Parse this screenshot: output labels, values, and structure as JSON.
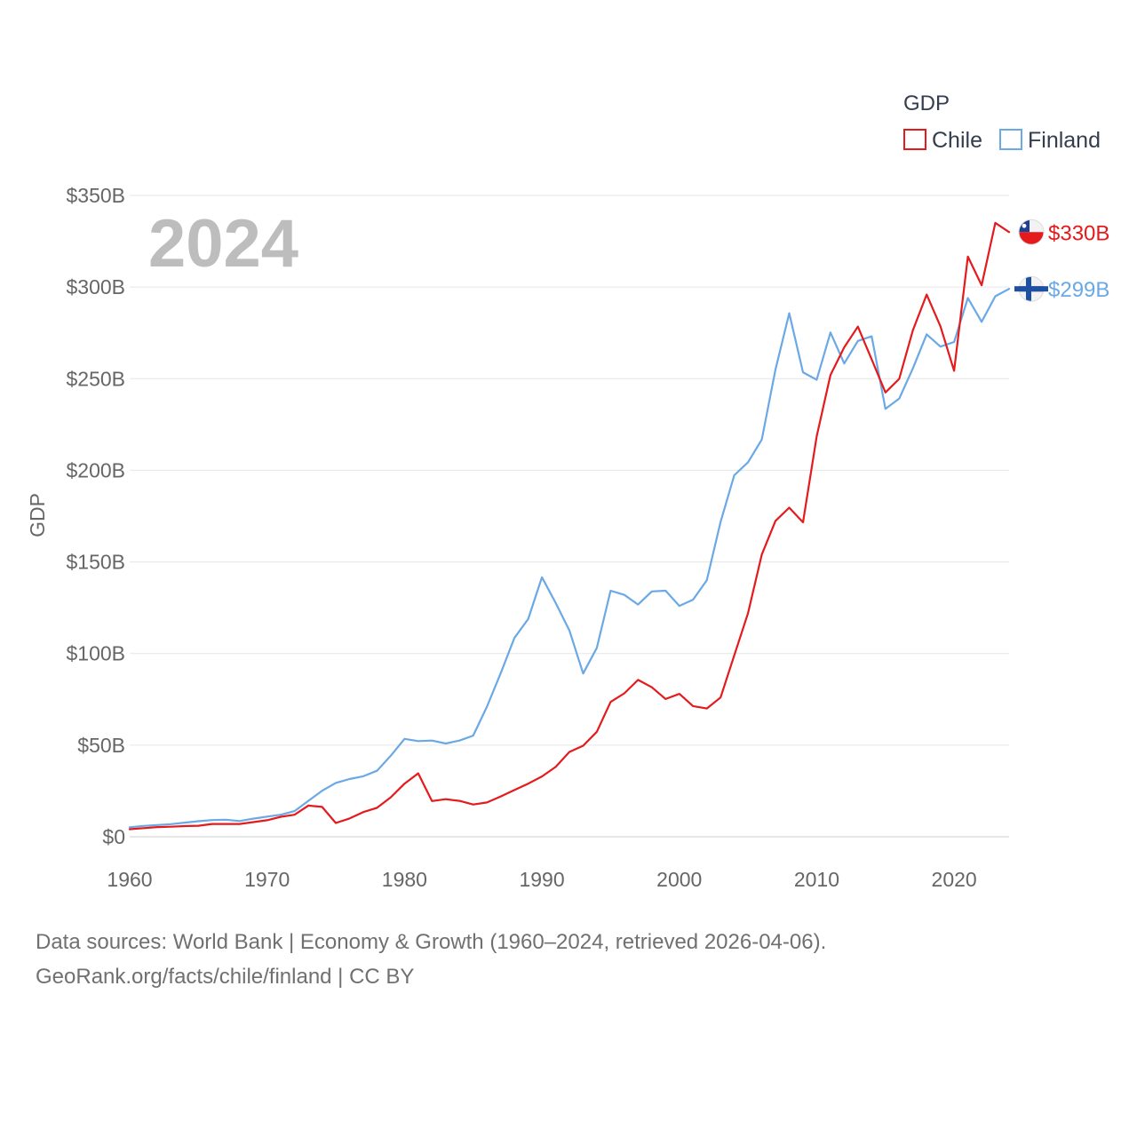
{
  "chart_data": {
    "type": "line",
    "year_label": "2024",
    "ylabel": "GDP",
    "legend_title": "GDP",
    "ylim": [
      0,
      350
    ],
    "yticks": [
      {
        "value": 0,
        "label": "$0"
      },
      {
        "value": 50,
        "label": "$50B"
      },
      {
        "value": 100,
        "label": "$100B"
      },
      {
        "value": 150,
        "label": "$150B"
      },
      {
        "value": 200,
        "label": "$200B"
      },
      {
        "value": 250,
        "label": "$250B"
      },
      {
        "value": 300,
        "label": "$300B"
      },
      {
        "value": 350,
        "label": "$350B"
      }
    ],
    "xlim": [
      1960,
      2024
    ],
    "xticks": [
      {
        "value": 1960,
        "label": "1960"
      },
      {
        "value": 1970,
        "label": "1970"
      },
      {
        "value": 1980,
        "label": "1980"
      },
      {
        "value": 1990,
        "label": "1990"
      },
      {
        "value": 2000,
        "label": "2000"
      },
      {
        "value": 2010,
        "label": "2010"
      },
      {
        "value": 2020,
        "label": "2020"
      }
    ],
    "x": [
      1960,
      1961,
      1962,
      1963,
      1964,
      1965,
      1966,
      1967,
      1968,
      1969,
      1970,
      1971,
      1972,
      1973,
      1974,
      1975,
      1976,
      1977,
      1978,
      1979,
      1980,
      1981,
      1982,
      1983,
      1984,
      1985,
      1986,
      1987,
      1988,
      1989,
      1990,
      1991,
      1992,
      1993,
      1994,
      1995,
      1996,
      1997,
      1998,
      1999,
      2000,
      2001,
      2002,
      2003,
      2004,
      2005,
      2006,
      2007,
      2008,
      2009,
      2010,
      2011,
      2012,
      2013,
      2014,
      2015,
      2016,
      2017,
      2018,
      2019,
      2020,
      2021,
      2022,
      2023,
      2024
    ],
    "series": [
      {
        "name": "Chile",
        "color": "#e41a1c",
        "end_label": "$330B",
        "flag": "chile-flag",
        "values": [
          4.1,
          4.7,
          5.3,
          5.5,
          5.8,
          6.0,
          7.0,
          7.0,
          7.0,
          8.0,
          9.0,
          10.9,
          12.0,
          17.0,
          16.3,
          7.5,
          10.0,
          13.5,
          15.8,
          21.5,
          29.0,
          34.6,
          19.5,
          20.5,
          19.6,
          17.6,
          18.7,
          22.0,
          25.5,
          29.0,
          32.9,
          38.1,
          46.3,
          49.7,
          57.3,
          73.6,
          78.3,
          85.6,
          81.6,
          75.2,
          78.0,
          71.3,
          70.0,
          76.0,
          99.0,
          122.0,
          154.0,
          172.4,
          179.6,
          171.6,
          218.5,
          252.0,
          267.1,
          278.4,
          260.5,
          242.5,
          249.9,
          276.4,
          295.9,
          278.6,
          254.3,
          316.6,
          301.0,
          335.0,
          330.0
        ]
      },
      {
        "name": "Finland",
        "color": "#6aa8e6",
        "end_label": "$299B",
        "flag": "finland-flag",
        "values": [
          5.2,
          5.9,
          6.4,
          6.9,
          7.7,
          8.5,
          9.1,
          9.3,
          8.6,
          9.9,
          11.0,
          12.0,
          14.0,
          19.6,
          25.1,
          29.4,
          31.5,
          33.0,
          36.0,
          44.2,
          53.4,
          52.2,
          52.5,
          50.9,
          52.5,
          55.2,
          71.0,
          89.3,
          108.5,
          118.8,
          141.6,
          127.7,
          112.6,
          89.1,
          103.1,
          134.3,
          132.0,
          126.7,
          133.9,
          134.3,
          126.0,
          129.4,
          140.0,
          171.8,
          197.3,
          204.4,
          216.8,
          255.0,
          285.7,
          253.5,
          249.4,
          275.2,
          258.3,
          270.6,
          273.1,
          233.5,
          239.1,
          255.6,
          274.2,
          267.5,
          270.0,
          294.0,
          281.0,
          295.0,
          299.0
        ]
      }
    ]
  },
  "footer": {
    "line1": "Data sources: World Bank | Economy & Growth (1960–2024, retrieved 2026-04-06).",
    "line2": "GeoRank.org/facts/chile/finland | CC BY"
  }
}
